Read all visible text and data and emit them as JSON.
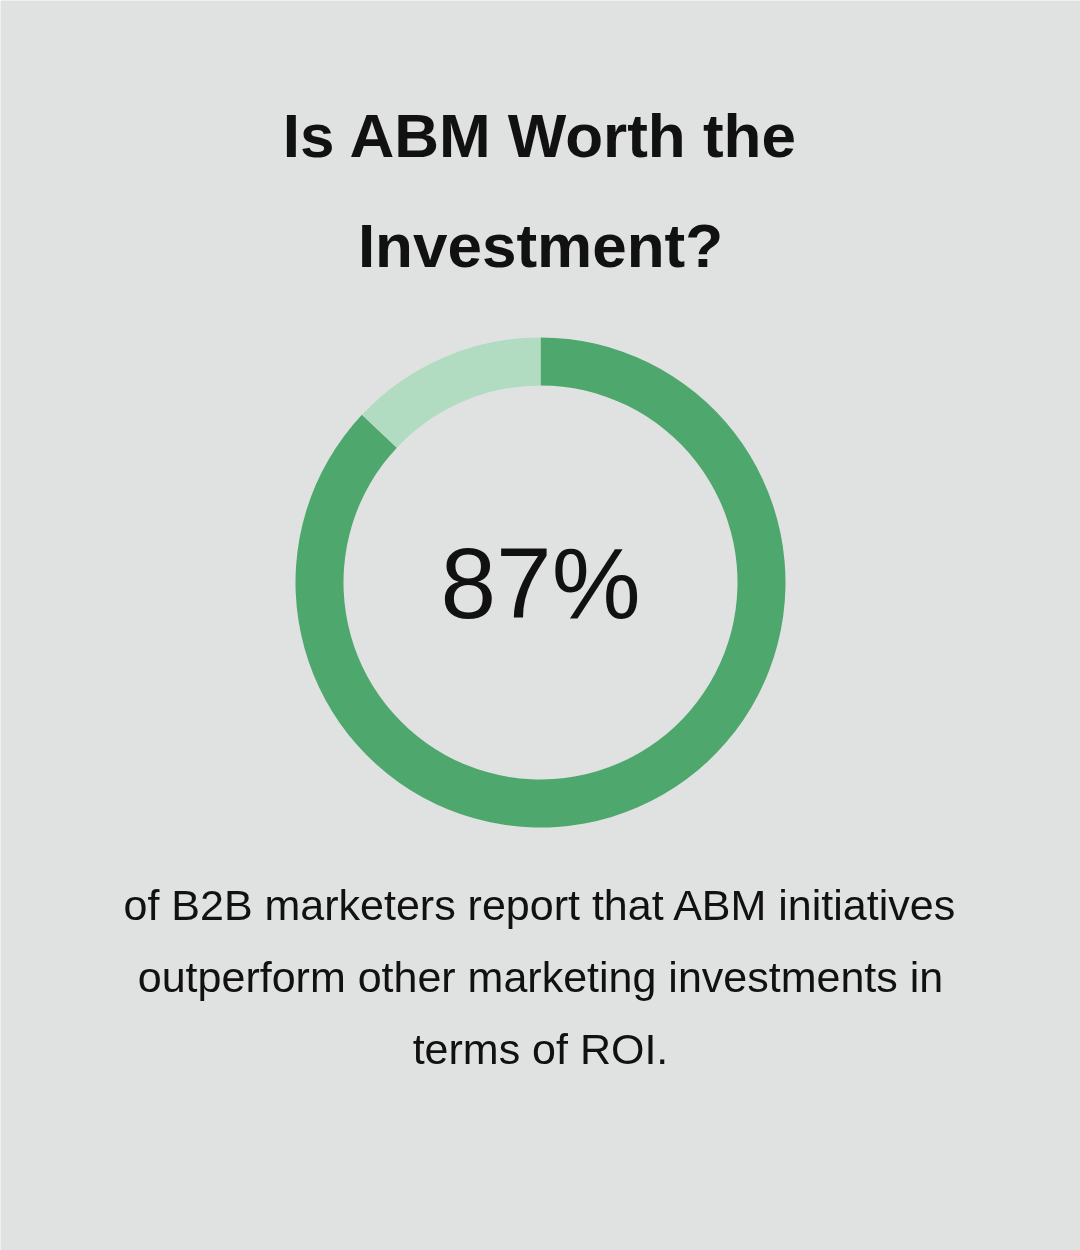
{
  "chart_data": {
    "type": "donut",
    "title": "Is ABM Worth the Investment?",
    "categories": [
      null,
      null
    ],
    "values": [
      87,
      13
    ],
    "colors": [
      "#4ea86d",
      "#b2dcc1"
    ],
    "value_labels": [
      "87%",
      null
    ],
    "annotations": [
      "of B2B marketers report that ABM initiatives outperform other marketing investments in terms of ROI."
    ]
  }
}
